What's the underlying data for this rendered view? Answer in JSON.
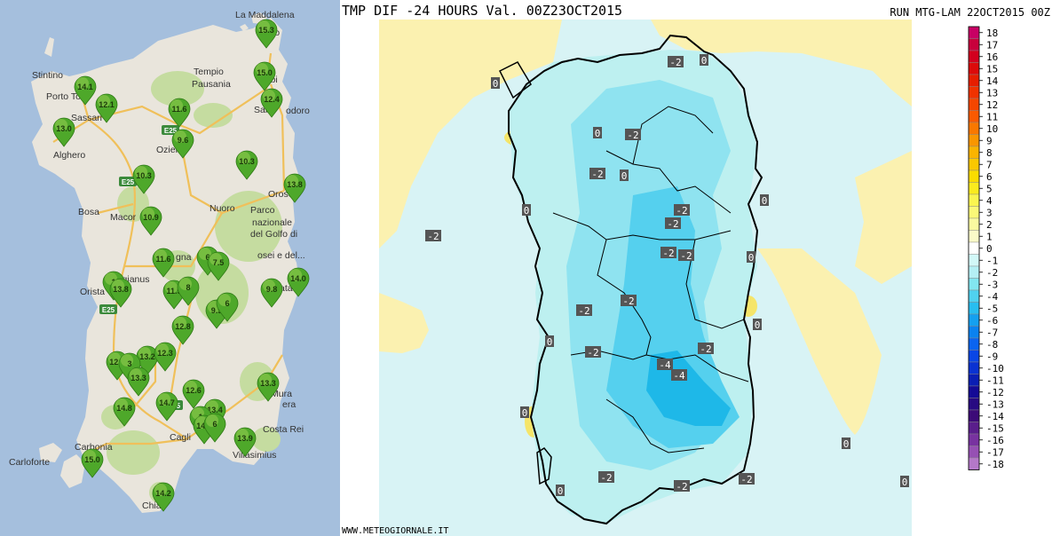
{
  "left_map": {
    "colors": {
      "sea": "#a5bfdd",
      "land": "#e9e5dc",
      "green": "#c5dca0",
      "road": "#f0c05a",
      "pin_dark": "#4ea82a",
      "pin_light": "#a8d85a"
    },
    "places": [
      {
        "name": "La Maddalena"
      },
      {
        "name": "Porto"
      },
      {
        "name": "Stintino"
      },
      {
        "name": "Porto To"
      },
      {
        "name": "Tempio"
      },
      {
        "name": "Pausania"
      },
      {
        "name": "Olbi"
      },
      {
        "name": "San"
      },
      {
        "name": "odoro"
      },
      {
        "name": "Sassari"
      },
      {
        "name": "Alghero"
      },
      {
        "name": "Ozier"
      },
      {
        "name": "Orose"
      },
      {
        "name": "Bosa"
      },
      {
        "name": "Macor"
      },
      {
        "name": "Nuoro"
      },
      {
        "name": "Parco"
      },
      {
        "name": "nazionale"
      },
      {
        "name": "del Golfo di"
      },
      {
        "name": "osei e del..."
      },
      {
        "name": "gna"
      },
      {
        "name": "dongianus"
      },
      {
        "name": "Orista"
      },
      {
        "name": "ata"
      },
      {
        "name": "Mura"
      },
      {
        "name": "era"
      },
      {
        "name": "Carbonia"
      },
      {
        "name": "Cagli"
      },
      {
        "name": "Carloforte"
      },
      {
        "name": "Villasimius"
      },
      {
        "name": "Costa Rei"
      },
      {
        "name": "Chia"
      }
    ],
    "shields": [
      {
        "label": "E25"
      },
      {
        "label": "E25"
      },
      {
        "label": "E25"
      },
      {
        "label": "E25"
      }
    ],
    "stations": [
      {
        "value": "15.3"
      },
      {
        "value": "15.0"
      },
      {
        "value": "14.1"
      },
      {
        "value": "12.1"
      },
      {
        "value": "12.4"
      },
      {
        "value": "11.6"
      },
      {
        "value": "13.0"
      },
      {
        "value": "9.6"
      },
      {
        "value": "10.3"
      },
      {
        "value": "10.3"
      },
      {
        "value": "13.8"
      },
      {
        "value": "10.9"
      },
      {
        "value": "11.6"
      },
      {
        "value": "6"
      },
      {
        "value": "7.5"
      },
      {
        "value": "14.0"
      },
      {
        "value": "1"
      },
      {
        "value": "13.8"
      },
      {
        "value": "11.9"
      },
      {
        "value": "8"
      },
      {
        "value": "9.8"
      },
      {
        "value": "9.9"
      },
      {
        "value": "6"
      },
      {
        "value": "12.8"
      },
      {
        "value": "13.2"
      },
      {
        "value": "12.3"
      },
      {
        "value": "12.1"
      },
      {
        "value": "3"
      },
      {
        "value": "13.3"
      },
      {
        "value": "12.6"
      },
      {
        "value": "13.3"
      },
      {
        "value": "14.8"
      },
      {
        "value": "14.7"
      },
      {
        "value": "13.4"
      },
      {
        "value": "1"
      },
      {
        "value": "14.0"
      },
      {
        "value": "6"
      },
      {
        "value": "13.9"
      },
      {
        "value": "15.0"
      },
      {
        "value": "14.2"
      }
    ]
  },
  "right_map": {
    "title": "TMP DIF -24 HOURS Val. 00Z23OCT2015",
    "run": "RUN MTG-LAM 22OCT2015 00Z",
    "footer": "WWW.METEOGIORNALE.IT",
    "colors": {
      "sea": "#d8f3f5",
      "land_warm": "#fbf1b0",
      "yellow": "#f5e56a",
      "c1": "#bdf0f0",
      "c2": "#8fe3f0",
      "c3": "#55d0ee",
      "c4": "#1eb8e8",
      "border": "#000000",
      "label_bg": "#555555"
    },
    "labels": [
      {
        "text": "-2"
      },
      {
        "text": "0"
      },
      {
        "text": "0"
      },
      {
        "text": "0"
      },
      {
        "text": "-2"
      },
      {
        "text": "-2"
      },
      {
        "text": "0"
      },
      {
        "text": "-2"
      },
      {
        "text": "-2"
      },
      {
        "text": "0"
      },
      {
        "text": "-2"
      },
      {
        "text": "0"
      },
      {
        "text": "-2"
      },
      {
        "text": "-2"
      },
      {
        "text": "0"
      },
      {
        "text": "-2"
      },
      {
        "text": "-2"
      },
      {
        "text": "0"
      },
      {
        "text": "-2"
      },
      {
        "text": "-2"
      },
      {
        "text": "0"
      },
      {
        "text": "-4"
      },
      {
        "text": "-4"
      },
      {
        "text": "0"
      },
      {
        "text": "0"
      },
      {
        "text": "-2"
      },
      {
        "text": "0"
      },
      {
        "text": "-2"
      },
      {
        "text": "-2"
      },
      {
        "text": "0"
      }
    ],
    "legend": [
      {
        "label": "18",
        "color": "#c80064"
      },
      {
        "label": "17",
        "color": "#c8003c"
      },
      {
        "label": "16",
        "color": "#d2001e"
      },
      {
        "label": "15",
        "color": "#dc0a0a"
      },
      {
        "label": "14",
        "color": "#e61e00"
      },
      {
        "label": "13",
        "color": "#f03200"
      },
      {
        "label": "12",
        "color": "#f54600"
      },
      {
        "label": "11",
        "color": "#fa5a00"
      },
      {
        "label": "10",
        "color": "#fa7800"
      },
      {
        "label": "9",
        "color": "#fa9600"
      },
      {
        "label": "8",
        "color": "#fab400"
      },
      {
        "label": "7",
        "color": "#fac800"
      },
      {
        "label": "6",
        "color": "#fadc00"
      },
      {
        "label": "5",
        "color": "#faeb1e"
      },
      {
        "label": "4",
        "color": "#faf550"
      },
      {
        "label": "3",
        "color": "#faf878"
      },
      {
        "label": "2",
        "color": "#fafaa0"
      },
      {
        "label": "1",
        "color": "#fafac8"
      },
      {
        "label": "0",
        "color": "#ffffff"
      },
      {
        "label": "-1",
        "color": "#d2f8f8"
      },
      {
        "label": "-2",
        "color": "#b4f0f5"
      },
      {
        "label": "-3",
        "color": "#82e6f0"
      },
      {
        "label": "-4",
        "color": "#50d2f0"
      },
      {
        "label": "-5",
        "color": "#28bef0"
      },
      {
        "label": "-6",
        "color": "#14a0f0"
      },
      {
        "label": "-7",
        "color": "#0a82f0"
      },
      {
        "label": "-8",
        "color": "#0a64f0"
      },
      {
        "label": "-9",
        "color": "#0a46e6"
      },
      {
        "label": "-10",
        "color": "#0a32d2"
      },
      {
        "label": "-11",
        "color": "#0a1eb4"
      },
      {
        "label": "-12",
        "color": "#140a96"
      },
      {
        "label": "-13",
        "color": "#280a82"
      },
      {
        "label": "-14",
        "color": "#3c0a78"
      },
      {
        "label": "-15",
        "color": "#5a1e8c"
      },
      {
        "label": "-16",
        "color": "#7832a0"
      },
      {
        "label": "-17",
        "color": "#9650b4"
      },
      {
        "label": "-18",
        "color": "#b478c8"
      }
    ]
  }
}
